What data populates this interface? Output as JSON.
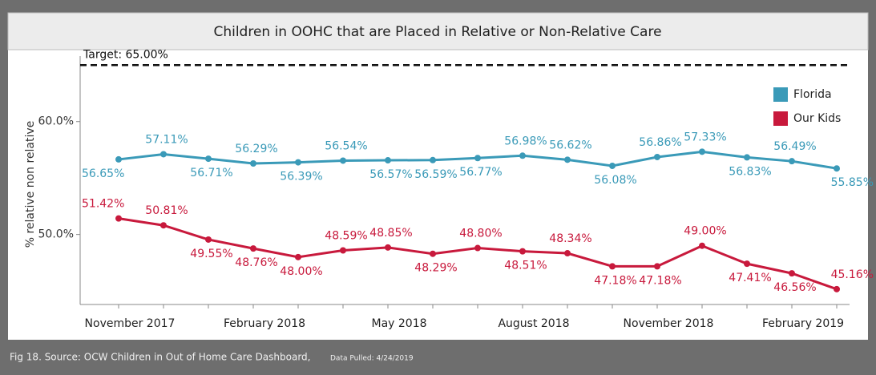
{
  "chart_data": {
    "type": "line",
    "title": "Children in OOHC that are Placed in Relative or Non-Relative Care",
    "y_label": "% relative non relative",
    "footer": "Fig 18. Source: OCW Children in Out of Home Care Dashboard,",
    "footer_note": "Data Pulled: 4/24/2019",
    "target": {
      "value": 65,
      "label": "Target: 65.00%"
    },
    "categories": [
      "November 2017",
      null,
      null,
      "February 2018",
      null,
      null,
      "May 2018",
      null,
      null,
      "August 2018",
      null,
      null,
      "November 2018",
      null,
      null,
      "February 2019",
      null
    ],
    "series": [
      {
        "name": "Florida",
        "color": "#3a9ab8",
        "values": [
          56.65,
          57.11,
          56.71,
          56.29,
          56.39,
          56.54,
          56.57,
          56.59,
          56.77,
          56.98,
          56.62,
          56.08,
          56.86,
          57.33,
          56.83,
          56.49,
          55.85
        ],
        "value_labels": [
          "56.65%",
          "57.11%",
          "56.71%",
          "56.29%",
          "56.39%",
          "56.54%",
          "56.57%",
          "56.59%",
          "56.77%",
          "56.98%",
          "56.62%",
          "56.08%",
          "56.86%",
          "57.33%",
          "56.83%",
          "56.49%",
          "55.85%"
        ]
      },
      {
        "name": "Our Kids",
        "color": "#c8193c",
        "values": [
          51.42,
          50.81,
          49.55,
          48.76,
          48.0,
          48.59,
          48.85,
          48.29,
          48.8,
          48.51,
          48.34,
          47.18,
          47.18,
          49.0,
          47.41,
          46.56,
          45.16
        ],
        "value_labels": [
          "51.42%",
          "50.81%",
          "49.55%",
          "48.76%",
          "48.00%",
          "48.59%",
          "48.85%",
          "48.29%",
          "48.80%",
          "48.51%",
          "48.34%",
          "47.18%",
          "47.18%",
          "49.00%",
          "47.41%",
          "46.56%",
          "45.16%"
        ]
      }
    ],
    "ylim": [
      43.8,
      65.8
    ],
    "yticks": [
      {
        "value": 50,
        "label": "50.0%"
      },
      {
        "value": 60,
        "label": "60.0%"
      }
    ],
    "legend": "top-right"
  }
}
